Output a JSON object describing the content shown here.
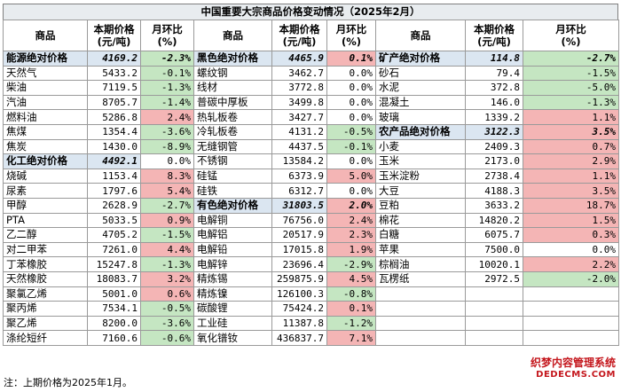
{
  "title": "中国重要大宗商品价格变动情况（2025年2月）",
  "headers": {
    "commodity": "商品",
    "price_line1": "本期价格",
    "price_line2": "(元/吨)",
    "change_line1": "月环比",
    "change_line2": "(%)"
  },
  "col1": [
    {
      "name": "能源绝对价格",
      "price": "4169.2",
      "change": "-2.3%",
      "highlight": true
    },
    {
      "name": "天然气",
      "price": "5433.2",
      "change": "-0.1%"
    },
    {
      "name": "柴油",
      "price": "7119.5",
      "change": "-1.3%"
    },
    {
      "name": "汽油",
      "price": "8705.7",
      "change": "-1.4%"
    },
    {
      "name": "燃料油",
      "price": "5286.8",
      "change": "2.4%"
    },
    {
      "name": "焦煤",
      "price": "1354.4",
      "change": "-3.6%"
    },
    {
      "name": "焦炭",
      "price": "1430.0",
      "change": "-8.9%"
    },
    {
      "name": "化工绝对价格",
      "price": "4492.1",
      "change": "0.0%",
      "highlight": true
    },
    {
      "name": "烧碱",
      "price": "1153.4",
      "change": "8.3%"
    },
    {
      "name": "尿素",
      "price": "1797.6",
      "change": "5.4%"
    },
    {
      "name": "甲醇",
      "price": "2628.9",
      "change": "-2.7%"
    },
    {
      "name": "PTA",
      "price": "5033.5",
      "change": "0.9%"
    },
    {
      "name": "乙二醇",
      "price": "4705.2",
      "change": "-1.5%"
    },
    {
      "name": "对二甲苯",
      "price": "7261.0",
      "change": "4.4%"
    },
    {
      "name": "丁苯橡胶",
      "price": "15247.8",
      "change": "-1.3%"
    },
    {
      "name": "天然橡胶",
      "price": "18083.7",
      "change": "3.2%"
    },
    {
      "name": "聚氯乙烯",
      "price": "5001.0",
      "change": "0.6%"
    },
    {
      "name": "聚丙烯",
      "price": "7534.1",
      "change": "-0.5%"
    },
    {
      "name": "聚乙烯",
      "price": "8200.0",
      "change": "-3.6%"
    },
    {
      "name": "涤纶短纤",
      "price": "7160.6",
      "change": "-0.6%"
    }
  ],
  "col2": [
    {
      "name": "黑色绝对价格",
      "price": "4465.9",
      "change": "0.1%",
      "highlight": true
    },
    {
      "name": "螺纹钢",
      "price": "3462.7",
      "change": "0.0%"
    },
    {
      "name": "线材",
      "price": "3772.8",
      "change": "0.0%"
    },
    {
      "name": "普碳中厚板",
      "price": "3499.8",
      "change": "0.0%"
    },
    {
      "name": "热轧板卷",
      "price": "3427.7",
      "change": "0.0%"
    },
    {
      "name": "冷轧板卷",
      "price": "4131.2",
      "change": "-0.5%"
    },
    {
      "name": "无缝钢管",
      "price": "4437.5",
      "change": "-0.1%"
    },
    {
      "name": "不锈钢",
      "price": "13584.2",
      "change": "0.0%"
    },
    {
      "name": "硅锰",
      "price": "6373.9",
      "change": "5.0%"
    },
    {
      "name": "硅铁",
      "price": "6312.7",
      "change": "0.0%"
    },
    {
      "name": "有色绝对价格",
      "price": "31803.5",
      "change": "2.0%",
      "highlight": true
    },
    {
      "name": "电解铜",
      "price": "76756.0",
      "change": "2.4%"
    },
    {
      "name": "电解铝",
      "price": "20517.9",
      "change": "2.3%"
    },
    {
      "name": "电解铅",
      "price": "17015.8",
      "change": "1.9%"
    },
    {
      "name": "电解锌",
      "price": "23696.4",
      "change": "-2.9%"
    },
    {
      "name": "精炼锡",
      "price": "259875.9",
      "change": "4.5%"
    },
    {
      "name": "精炼镍",
      "price": "126100.3",
      "change": "-0.8%"
    },
    {
      "name": "碳酸锂",
      "price": "75424.2",
      "change": "0.1%"
    },
    {
      "name": "工业硅",
      "price": "11387.8",
      "change": "-1.2%"
    },
    {
      "name": "氧化镨钕",
      "price": "436837.7",
      "change": "7.1%"
    }
  ],
  "col3": [
    {
      "name": "矿产绝对价格",
      "price": "114.8",
      "change": "-2.7%",
      "highlight": true
    },
    {
      "name": "砂石",
      "price": "79.4",
      "change": "-1.5%"
    },
    {
      "name": "水泥",
      "price": "372.8",
      "change": "-5.0%"
    },
    {
      "name": "混凝土",
      "price": "146.0",
      "change": "-1.3%"
    },
    {
      "name": "玻璃",
      "price": "1339.2",
      "change": "1.1%"
    },
    {
      "name": "农产品绝对价格",
      "price": "3122.3",
      "change": "3.5%",
      "highlight": true
    },
    {
      "name": "小麦",
      "price": "2409.3",
      "change": "0.7%"
    },
    {
      "name": "玉米",
      "price": "2173.0",
      "change": "2.9%"
    },
    {
      "name": "玉米淀粉",
      "price": "2738.4",
      "change": "1.1%"
    },
    {
      "name": "大豆",
      "price": "4188.3",
      "change": "3.5%"
    },
    {
      "name": "豆粕",
      "price": "3633.2",
      "change": "18.7%"
    },
    {
      "name": "棉花",
      "price": "14820.2",
      "change": "1.5%"
    },
    {
      "name": "白糖",
      "price": "6075.7",
      "change": "0.3%"
    },
    {
      "name": "苹果",
      "price": "7500.0",
      "change": "0.0%"
    },
    {
      "name": "棕榈油",
      "price": "10020.1",
      "change": "2.2%"
    },
    {
      "name": "瓦楞纸",
      "price": "2972.5",
      "change": "-2.0%"
    },
    {
      "name": "",
      "price": "",
      "change": ""
    },
    {
      "name": "",
      "price": "",
      "change": ""
    },
    {
      "name": "",
      "price": "",
      "change": ""
    },
    {
      "name": "",
      "price": "",
      "change": ""
    }
  ],
  "note": "注：上期价格为2025年1月。",
  "watermark": {
    "line1": "织梦内容管理系统",
    "line2": "DEDECMS.COM"
  },
  "colors": {
    "positive": "#f4b5b5",
    "negative": "#c5e6c2",
    "highlight": "#dbe6f1",
    "title_bg": "#e8ecef",
    "watermark": "#c4161c"
  }
}
